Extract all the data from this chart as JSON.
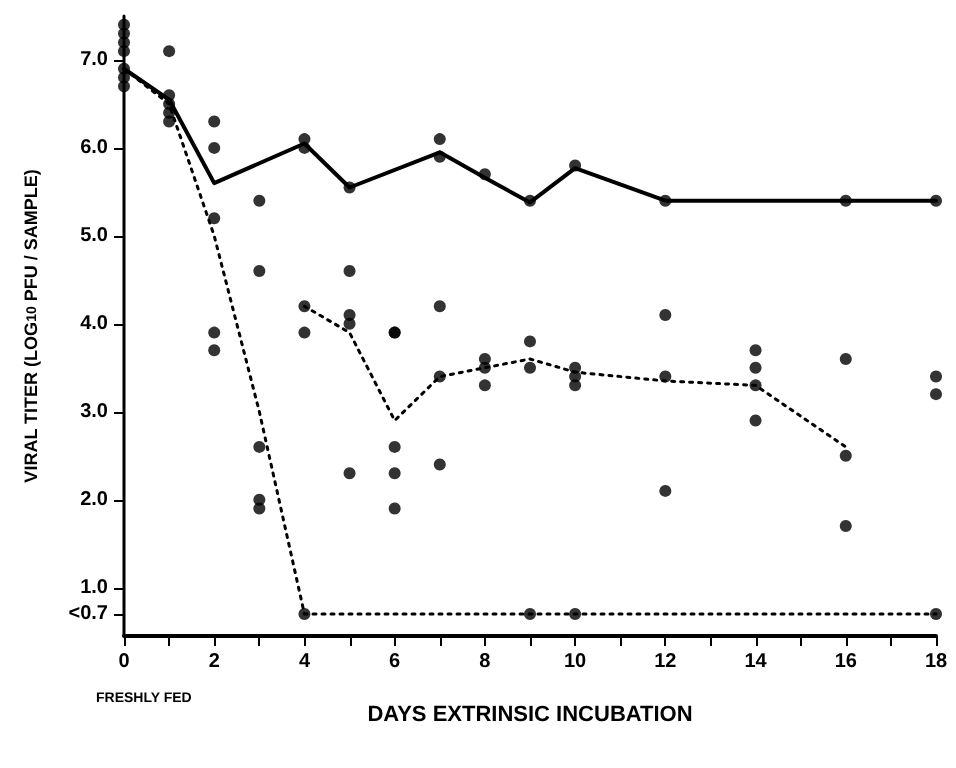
{
  "chart_data": {
    "type": "scatter",
    "xlabel": "DAYS EXTRINSIC INCUBATION",
    "ylabel": "VIRAL TITER (LOG$_{10}$ PFU / SAMPLE)",
    "annotations": [
      "FRESHLY FED"
    ],
    "xlim": [
      0,
      18
    ],
    "ylim": [
      0.45,
      7.5
    ],
    "xticks": [
      0,
      {
        "value": 1,
        "label": null
      },
      2,
      {
        "value": 3,
        "label": null
      },
      4,
      {
        "value": 5,
        "label": null
      },
      6,
      {
        "value": 7,
        "label": null
      },
      8,
      {
        "value": 9,
        "label": null
      },
      10,
      {
        "value": 11,
        "label": null
      },
      12,
      {
        "value": 13,
        "label": null
      },
      14,
      {
        "value": 15,
        "label": null
      },
      16,
      {
        "value": 17,
        "label": null
      },
      18
    ],
    "yticks": [
      {
        "value": 0.7,
        "label": "<0.7"
      },
      {
        "value": 1,
        "label": "1.0"
      },
      {
        "value": 2,
        "label": "2.0"
      },
      {
        "value": 3,
        "label": "3.0"
      },
      {
        "value": 4,
        "label": "4.0"
      },
      {
        "value": 5,
        "label": "5.0"
      },
      {
        "value": 6,
        "label": "6.0"
      },
      {
        "value": 7,
        "label": "7.0"
      }
    ],
    "grid": false,
    "marker": "circle",
    "series": [
      {
        "type": "line",
        "marker": "none",
        "line_style": "solid",
        "color": "#000000",
        "x": [
          0,
          1,
          2,
          4,
          5,
          7,
          8,
          9,
          10,
          12,
          16,
          18
        ],
        "values": [
          6.9,
          6.55,
          5.6,
          6.05,
          5.55,
          5.95,
          5.66,
          5.38,
          5.77,
          5.4,
          5.4,
          5.4
        ]
      },
      {
        "type": "line",
        "marker": "none",
        "line_style": "dotted",
        "color": "#000000",
        "x": [
          0,
          1,
          2,
          3,
          4,
          9,
          10,
          18
        ],
        "values": [
          6.9,
          6.5,
          5.0,
          3.0,
          0.7,
          0.7,
          0.7,
          0.7
        ]
      },
      {
        "type": "line",
        "marker": "none",
        "line_style": "dotted",
        "color": "#000000",
        "x": [
          4,
          5,
          6,
          7,
          8,
          9,
          10,
          12,
          14,
          16
        ],
        "values": [
          4.2,
          3.9,
          2.9,
          3.4,
          3.5,
          3.6,
          3.45,
          3.35,
          3.3,
          2.6
        ]
      },
      {
        "type": "scatter",
        "color": "#000000",
        "x": [
          0,
          0,
          0,
          0,
          0,
          0,
          0,
          1,
          1,
          1,
          1,
          1,
          2,
          2,
          2,
          2,
          2,
          3,
          3,
          3,
          3,
          3,
          4,
          4,
          4,
          4,
          4,
          5,
          5,
          5,
          5,
          5,
          6,
          6,
          6,
          6,
          6,
          7,
          7,
          7,
          7,
          7,
          8,
          8,
          8,
          8,
          9,
          9,
          9,
          9,
          10,
          10,
          10,
          10,
          10,
          12,
          12,
          12,
          12,
          14,
          14,
          14,
          14,
          16,
          16,
          16,
          16,
          18,
          18,
          18,
          18
        ],
        "values": [
          7.4,
          7.3,
          7.2,
          7.1,
          6.9,
          6.8,
          6.7,
          7.1,
          6.6,
          6.5,
          6.4,
          6.3,
          6.3,
          6.0,
          5.2,
          3.9,
          3.7,
          5.4,
          4.6,
          2.6,
          2.0,
          1.9,
          6.1,
          6.0,
          4.2,
          3.9,
          0.7,
          5.55,
          4.6,
          4.1,
          4.0,
          2.3,
          3.9,
          3.9,
          2.6,
          2.3,
          1.9,
          6.1,
          5.9,
          4.2,
          3.4,
          2.4,
          5.7,
          3.6,
          3.5,
          3.3,
          5.4,
          3.8,
          3.5,
          0.7,
          5.8,
          3.5,
          3.4,
          3.3,
          0.7,
          5.4,
          4.1,
          3.4,
          2.1,
          3.7,
          3.5,
          3.3,
          2.9,
          5.4,
          3.6,
          2.5,
          1.7,
          5.4,
          3.4,
          3.2,
          0.7
        ]
      }
    ]
  }
}
